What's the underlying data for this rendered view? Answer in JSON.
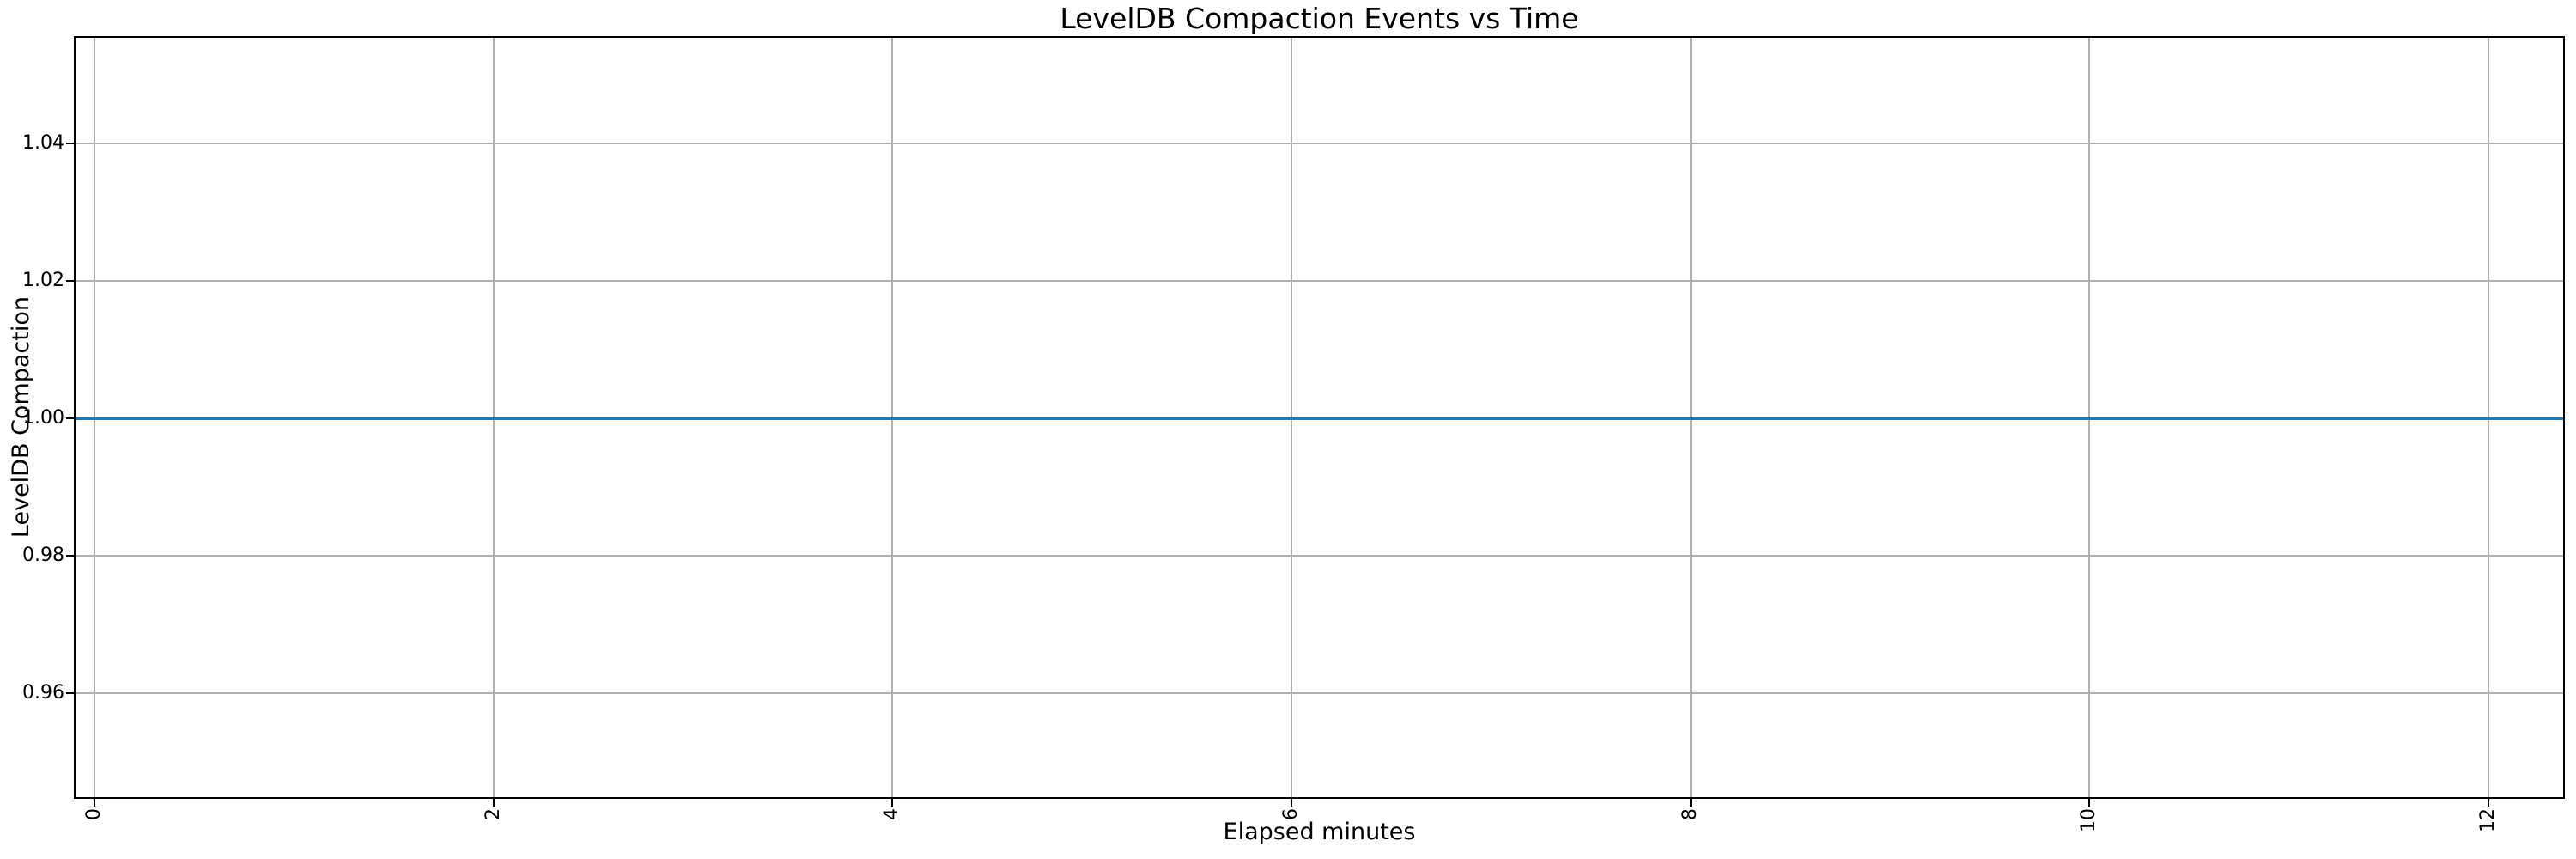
{
  "chart_data": {
    "type": "line",
    "title": "LevelDB Compaction Events vs Time",
    "xlabel": "Elapsed minutes",
    "ylabel": "LevelDB Compaction",
    "grid": true,
    "legend": "none",
    "x_ticks": [
      "0",
      "2",
      "4",
      "6",
      "8",
      "10",
      "12"
    ],
    "x_tick_values": [
      0,
      2,
      4,
      6,
      8,
      10,
      12
    ],
    "x_tick_label_rotation_deg": 90,
    "y_ticks": [
      "0.96",
      "0.98",
      "1.00",
      "1.02",
      "1.04"
    ],
    "y_tick_values": [
      0.96,
      0.98,
      1.0,
      1.02,
      1.04
    ],
    "xlim": [
      -0.095,
      12.375
    ],
    "ylim": [
      0.9449,
      1.0554
    ],
    "series": [
      {
        "name": "LevelDB Compaction",
        "kind": "constant-horizontal-line",
        "y": 1.0,
        "x_extent": [
          -0.095,
          12.375
        ],
        "markers": "none",
        "color": "#1f77b4"
      }
    ],
    "colors": {
      "line": "#1f77b4",
      "grid": "#b0b0b0",
      "spine": "#000000",
      "text": "#000000",
      "background": "#ffffff"
    }
  }
}
